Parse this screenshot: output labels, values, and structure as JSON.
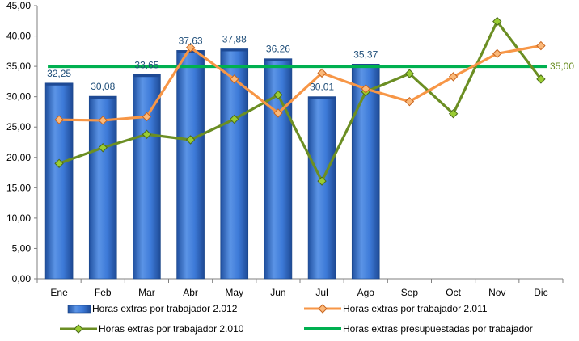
{
  "chart_data": {
    "type": "bar",
    "categories": [
      "Ene",
      "Feb",
      "Mar",
      "Abr",
      "May",
      "Jun",
      "Jul",
      "Ago",
      "Sep",
      "Oct",
      "Nov",
      "Dic"
    ],
    "ylim": [
      0,
      45
    ],
    "yticks": [
      "0,00",
      "5,00",
      "10,00",
      "15,00",
      "20,00",
      "25,00",
      "30,00",
      "35,00",
      "40,00",
      "45,00"
    ],
    "grid": false,
    "legend_position": "bottom",
    "series": [
      {
        "name": "Horas extras por trabajador 2.012",
        "type": "bar",
        "color": "#2e6fcf",
        "values": [
          32.25,
          30.08,
          33.65,
          37.63,
          37.88,
          36.26,
          30.01,
          35.37,
          null,
          null,
          null,
          null
        ],
        "labels": [
          "32,25",
          "30,08",
          "33,65",
          "37,63",
          "37,88",
          "36,26",
          "30,01",
          "35,37",
          "",
          "",
          "",
          ""
        ]
      },
      {
        "name": "Horas extras por trabajador 2.011",
        "type": "line",
        "color": "#f79646",
        "values": [
          26.2,
          26.1,
          26.7,
          38.1,
          32.9,
          27.3,
          33.9,
          31.3,
          29.2,
          33.3,
          37.1,
          38.4
        ]
      },
      {
        "name": "Horas extras por trabajador 2.010",
        "type": "line",
        "color": "#6b8e23",
        "values": [
          19.0,
          21.6,
          23.8,
          22.9,
          26.3,
          30.3,
          16.1,
          30.8,
          33.8,
          27.2,
          42.4,
          32.9
        ]
      },
      {
        "name": "Horas extras presupuestadas por trabajador",
        "type": "line",
        "color": "#00b050",
        "values": [
          35,
          35,
          35,
          35,
          35,
          35,
          35,
          35,
          35,
          35,
          35,
          35
        ],
        "end_label": "35,00"
      }
    ]
  }
}
